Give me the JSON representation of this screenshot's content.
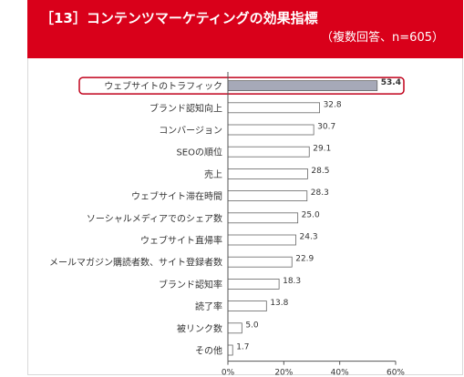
{
  "header": {
    "title": "［13］コンテンツマーケティングの効果指標",
    "subtitle": "（複数回答、n=605）"
  },
  "colors": {
    "header_bg": "#d9001a",
    "bar_fill": "#ffffff",
    "bar_stroke": "#666666",
    "highlight_fill": "#a6a9b8",
    "highlight_outline": "#c0001a"
  },
  "chart_data": {
    "type": "bar",
    "orientation": "horizontal",
    "categories": [
      "ウェブサイトのトラフィック",
      "ブランド認知向上",
      "コンバージョン",
      "SEOの順位",
      "売上",
      "ウェブサイト滞在時間",
      "ソーシャルメディアでのシェア数",
      "ウェブサイト直帰率",
      "メールマガジン購読者数、サイト登録者数",
      "ブランド認知率",
      "読了率",
      "被リンク数",
      "その他"
    ],
    "values": [
      53.4,
      32.8,
      30.7,
      29.1,
      28.5,
      28.3,
      25.0,
      24.3,
      22.9,
      18.3,
      13.8,
      5.0,
      1.7
    ],
    "value_labels": [
      "53.4",
      "32.8",
      "30.7",
      "29.1",
      "28.5",
      "28.3",
      "25.0",
      "24.3",
      "22.9",
      "18.3",
      "13.8",
      "5.0",
      "1.7"
    ],
    "highlight_index": 0,
    "xlim": [
      0,
      60
    ],
    "x_ticks": [
      0,
      20,
      40,
      60
    ],
    "x_tick_labels": [
      "0%",
      "20%",
      "40%",
      "60%"
    ],
    "grid": false
  }
}
